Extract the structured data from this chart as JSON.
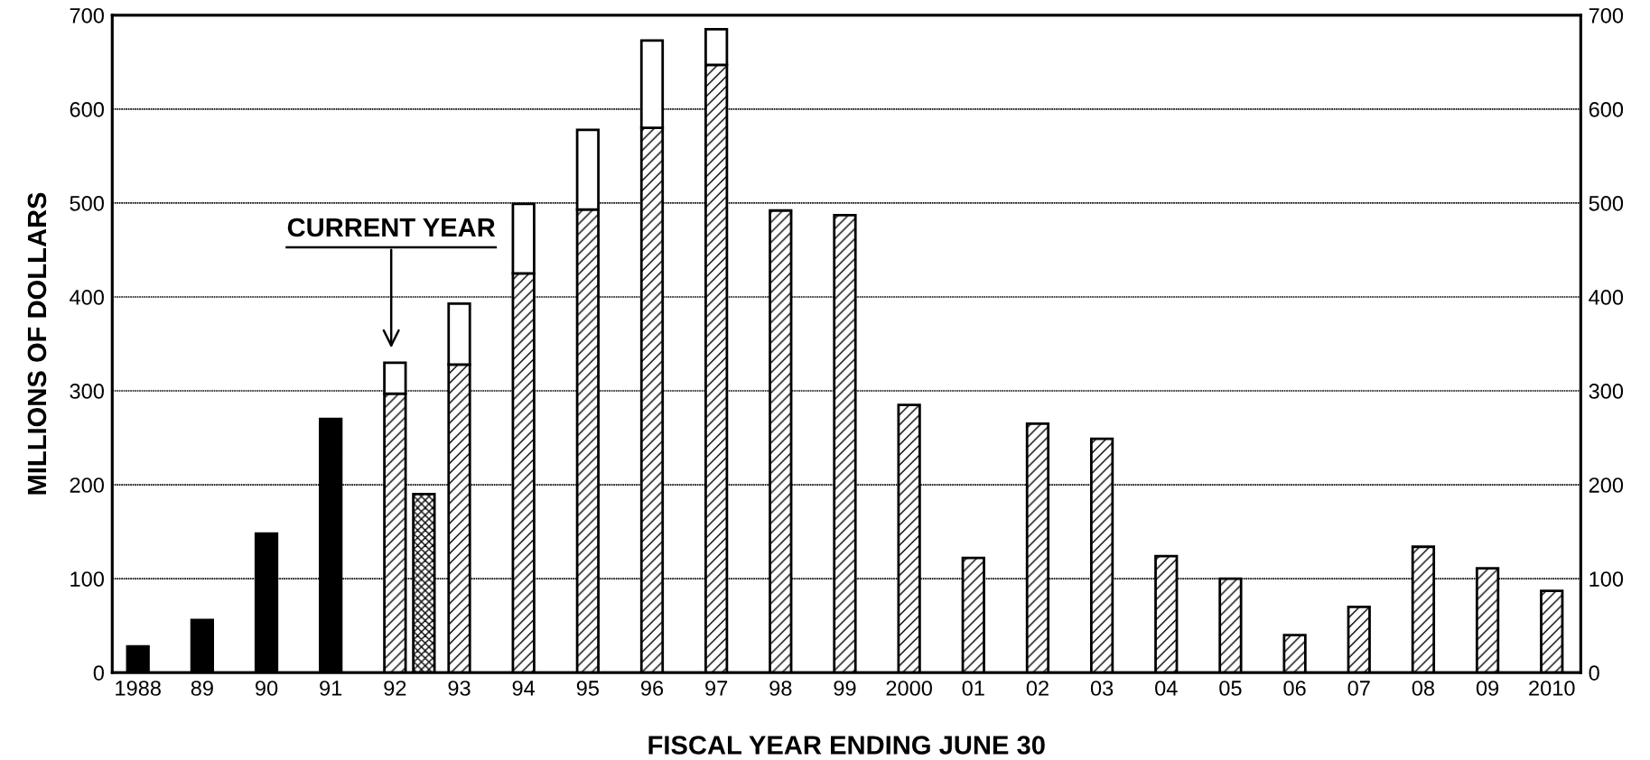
{
  "chart_data": {
    "type": "bar",
    "xlabel": "FISCAL YEAR ENDING JUNE 30",
    "ylabel": "MILLIONS OF DOLLARS",
    "x": [
      1988,
      1989,
      1990,
      1991,
      1992,
      1993,
      1994,
      1995,
      1996,
      1997,
      1998,
      1999,
      2000,
      2001,
      2002,
      2003,
      2004,
      2005,
      2006,
      2007,
      2008,
      2009,
      2010
    ],
    "series": [
      {
        "color": "#000000",
        "values": [
          28,
          56,
          148,
          270,
          null,
          null,
          null,
          null,
          null,
          null,
          null,
          null,
          null,
          null,
          null,
          null,
          null,
          null,
          null,
          null,
          null,
          null,
          null
        ]
      },
      {
        "color": "#000000",
        "values": [
          null,
          null,
          null,
          null,
          297,
          328,
          425,
          493,
          580,
          647,
          492,
          487,
          285,
          122,
          265,
          249,
          124,
          100,
          40,
          70,
          134,
          111,
          87
        ]
      },
      {
        "color": "#ffffff",
        "base": [
          null,
          null,
          null,
          null,
          297,
          328,
          425,
          493,
          580,
          647,
          null,
          null,
          null,
          null,
          null,
          null,
          null,
          null,
          null,
          null,
          null,
          null,
          null
        ],
        "values": [
          null,
          null,
          null,
          null,
          33,
          65,
          74,
          85,
          93,
          38,
          null,
          null,
          null,
          null,
          null,
          null,
          null,
          null,
          null,
          null,
          null,
          null,
          null
        ]
      },
      {
        "color": "#000000",
        "x": [
          1992.45
        ],
        "values": [
          190
        ]
      }
    ],
    "xlim": [
      1987.6,
      2010.45
    ],
    "xticks": [
      {
        "value": 1988,
        "label": "1988"
      },
      {
        "value": 1989,
        "label": "89"
      },
      {
        "value": 1990,
        "label": "90"
      },
      {
        "value": 1991,
        "label": "91"
      },
      {
        "value": 1992,
        "label": "92"
      },
      {
        "value": 1993,
        "label": "93"
      },
      {
        "value": 1994,
        "label": "94"
      },
      {
        "value": 1995,
        "label": "95"
      },
      {
        "value": 1996,
        "label": "96"
      },
      {
        "value": 1997,
        "label": "97"
      },
      {
        "value": 1998,
        "label": "98"
      },
      {
        "value": 1999,
        "label": "99"
      },
      {
        "value": 2000,
        "label": "2000"
      },
      {
        "value": 2001,
        "label": "01"
      },
      {
        "value": 2002,
        "label": "02"
      },
      {
        "value": 2003,
        "label": "03"
      },
      {
        "value": 2004,
        "label": "04"
      },
      {
        "value": 2005,
        "label": "05"
      },
      {
        "value": 2006,
        "label": "06"
      },
      {
        "value": 2007,
        "label": "07"
      },
      {
        "value": 2008,
        "label": "08"
      },
      {
        "value": 2009,
        "label": "09"
      },
      {
        "value": 2010,
        "label": "2010"
      }
    ],
    "ylim": [
      0,
      700
    ],
    "yticks": [
      0,
      100,
      200,
      300,
      400,
      500,
      600,
      700
    ],
    "y2lim": [
      0,
      700
    ],
    "y2ticks": [
      0,
      100,
      200,
      300,
      400,
      500,
      600,
      700
    ],
    "grid": "y",
    "annotations": [
      "CURRENT YEAR"
    ]
  }
}
